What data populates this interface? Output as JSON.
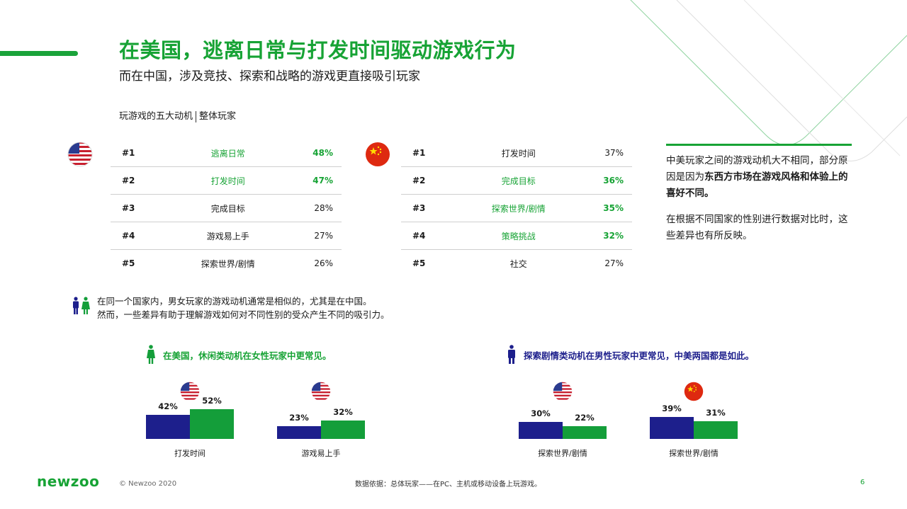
{
  "title": "在美国，逃离日常与打发时间驱动游戏行为",
  "subtitle": "而在中国，涉及竞技、探索和战略的游戏更直接吸引玩家",
  "section_label": {
    "left": "玩游戏的五大动机",
    "right": "整体玩家"
  },
  "us_table": [
    {
      "rank": "#1",
      "label": "逃离日常",
      "pct": "48%",
      "highlight": true
    },
    {
      "rank": "#2",
      "label": "打发时间",
      "pct": "47%",
      "highlight": true
    },
    {
      "rank": "#3",
      "label": "完成目标",
      "pct": "28%",
      "highlight": false
    },
    {
      "rank": "#4",
      "label": "游戏易上手",
      "pct": "27%",
      "highlight": false
    },
    {
      "rank": "#5",
      "label": "探索世界/剧情",
      "pct": "26%",
      "highlight": false
    }
  ],
  "cn_table": [
    {
      "rank": "#1",
      "label": "打发时间",
      "pct": "37%",
      "highlight": false
    },
    {
      "rank": "#2",
      "label": "完成目标",
      "pct": "36%",
      "highlight": true
    },
    {
      "rank": "#3",
      "label": "探索世界/剧情",
      "pct": "35%",
      "highlight": true
    },
    {
      "rank": "#4",
      "label": "策略挑战",
      "pct": "32%",
      "highlight": true
    },
    {
      "rank": "#5",
      "label": "社交",
      "pct": "27%",
      "highlight": false
    }
  ],
  "note": {
    "p1_a": "中美玩家之间的游戏动机大不相同，部分原因是因为",
    "p1_b": "东西方市场在游戏风格和体验上的喜好不同。",
    "p2": "在根据不同国家的性别进行数据对比时，这些差异也有所反映。"
  },
  "gender_note": {
    "line1": "在同一个国家内，男女玩家的游戏动机通常是相似的，尤其是在中国。",
    "line2": "然而，一些差异有助于理解游戏如何对不同性别的受众产生不同的吸引力。"
  },
  "female_title": "在美国，休闲类动机在女性玩家中更常见。",
  "male_title": "探索剧情类动机在男性玩家中更常见，中美两国都是如此。",
  "colors": {
    "green": "#17a335",
    "blue": "#1d1f8c"
  },
  "charts": [
    {
      "country": "us",
      "category": "打发时间",
      "male": 42,
      "female": 52,
      "male_label": "42%",
      "female_label": "52%"
    },
    {
      "country": "us",
      "category": "游戏易上手",
      "male": 23,
      "female": 32,
      "male_label": "23%",
      "female_label": "32%"
    },
    {
      "country": "us",
      "category": "探索世界/剧情",
      "male": 30,
      "female": 22,
      "male_label": "30%",
      "female_label": "22%"
    },
    {
      "country": "cn",
      "category": "探索世界/剧情",
      "male": 39,
      "female": 31,
      "male_label": "39%",
      "female_label": "31%"
    }
  ],
  "footer": {
    "logo": "newzoo",
    "copyright": "© Newzoo 2020",
    "source": "数据依据：总体玩家——在PC、主机或移动设备上玩游戏。",
    "page": "6"
  }
}
